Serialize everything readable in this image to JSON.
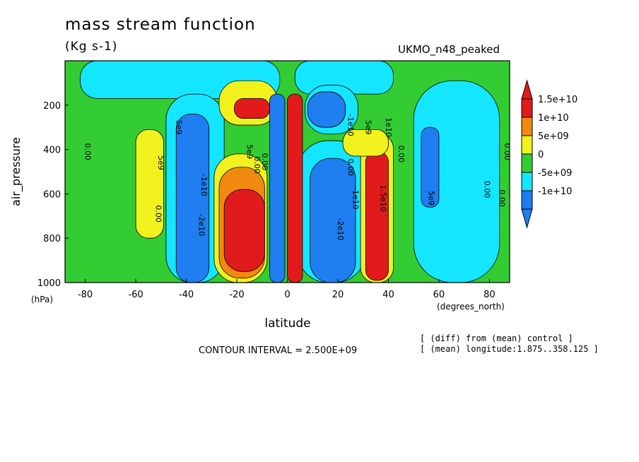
{
  "header": {
    "title": "mass stream function",
    "units": "(Kg s-1)",
    "dataset": "UKMO_n48_peaked"
  },
  "footer": {
    "contour_interval": "CONTOUR INTERVAL = 2.500E+09",
    "note_1": "[ (diff) from (mean) control ]",
    "note_2": "[ (mean) longitude:1.875..358.125 ]"
  },
  "chart_data": {
    "type": "heatmap",
    "title": "mass stream function",
    "subtitle": "(Kg s-1)",
    "xlabel": "latitude",
    "x_unit": "(degrees_north)",
    "ylabel": "air_pressure",
    "y_unit": "(hPa)",
    "xlim": [
      -88,
      88
    ],
    "ylim": [
      1000,
      0
    ],
    "x_ticks": [
      -80,
      -60,
      -40,
      -20,
      0,
      20,
      40,
      60,
      80
    ],
    "x_tick_labels": [
      "-80",
      "-60",
      "-40",
      "-20",
      "0",
      "20",
      "40",
      "60",
      "80"
    ],
    "y_ticks": [
      200,
      400,
      600,
      800,
      1000
    ],
    "y_tick_labels": [
      "200",
      "400",
      "600",
      "800",
      "1000"
    ],
    "contour_interval": 2500000000,
    "colorbar": {
      "levels": [
        {
          "label": "1.5e+10",
          "color": "#e11b1b"
        },
        {
          "label": "1e+10",
          "color": "#f08a0f"
        },
        {
          "label": "5e+09",
          "color": "#f1f11e"
        },
        {
          "label": "0",
          "color": "#33cc33"
        },
        {
          "label": "-5e+09",
          "color": "#14e6ff"
        },
        {
          "label": "-1e+10",
          "color": "#1f7ef0"
        }
      ]
    },
    "background_color": "#33cc33",
    "cells": [
      {
        "name": "north-polar-negative",
        "x": [
          50,
          84
        ],
        "y": [
          90,
          1000
        ],
        "value": -5000000000,
        "color": "#14e6ff"
      },
      {
        "name": "north-polar-core",
        "x": [
          53,
          60
        ],
        "y": [
          300,
          660
        ],
        "value": -10000000000,
        "color": "#1f7ef0"
      },
      {
        "name": "south-top-negative",
        "x": [
          -82,
          -3
        ],
        "y": [
          0,
          170
        ],
        "value": -5000000000,
        "color": "#14e6ff"
      },
      {
        "name": "north-top-negative",
        "x": [
          3,
          42
        ],
        "y": [
          0,
          150
        ],
        "value": -5000000000,
        "color": "#14e6ff"
      },
      {
        "name": "south-ferrel-cell",
        "x": [
          -48,
          -25
        ],
        "y": [
          150,
          1000
        ],
        "value": -5000000000,
        "color": "#14e6ff"
      },
      {
        "name": "south-ferrel-core",
        "x": [
          -44,
          -31
        ],
        "y": [
          240,
          1000
        ],
        "value": -10000000000,
        "color": "#1f7ef0"
      },
      {
        "name": "north-ferrel-cell",
        "x": [
          4,
          31
        ],
        "y": [
          360,
          1000
        ],
        "value": -5000000000,
        "color": "#14e6ff"
      },
      {
        "name": "north-ferrel-core",
        "x": [
          9,
          27
        ],
        "y": [
          440,
          1000
        ],
        "value": -10000000000,
        "color": "#1f7ef0"
      },
      {
        "name": "north-upper-negative",
        "x": [
          7,
          28
        ],
        "y": [
          110,
          330
        ],
        "value": -5000000000,
        "color": "#14e6ff"
      },
      {
        "name": "north-upper-core",
        "x": [
          8,
          23
        ],
        "y": [
          140,
          300
        ],
        "value": -10000000000,
        "color": "#1f7ef0"
      },
      {
        "name": "south-hadley-cell",
        "x": [
          -29,
          -8
        ],
        "y": [
          420,
          1000
        ],
        "value": 5000000000,
        "color": "#f1f11e"
      },
      {
        "name": "south-hadley-mid",
        "x": [
          -27,
          -9
        ],
        "y": [
          480,
          980
        ],
        "value": 10000000000,
        "color": "#f08a0f"
      },
      {
        "name": "south-hadley-core",
        "x": [
          -25,
          -9
        ],
        "y": [
          580,
          950
        ],
        "value": 15000000000,
        "color": "#e11b1b"
      },
      {
        "name": "south-upper-cell",
        "x": [
          -27,
          -4
        ],
        "y": [
          90,
          290
        ],
        "value": 5000000000,
        "color": "#f1f11e"
      },
      {
        "name": "south-upper-core",
        "x": [
          -21,
          -7
        ],
        "y": [
          170,
          260
        ],
        "value": 15000000000,
        "color": "#e11b1b"
      },
      {
        "name": "south-polar-positive",
        "x": [
          -60,
          -49
        ],
        "y": [
          310,
          800
        ],
        "value": 5000000000,
        "color": "#f1f11e"
      },
      {
        "name": "north-hadley-cell",
        "x": [
          29,
          42
        ],
        "y": [
          330,
          1000
        ],
        "value": 5000000000,
        "color": "#f1f11e"
      },
      {
        "name": "north-hadley-core",
        "x": [
          31,
          40
        ],
        "y": [
          410,
          990
        ],
        "value": 15000000000,
        "color": "#e11b1b"
      },
      {
        "name": "north-upper-positive",
        "x": [
          22,
          40
        ],
        "y": [
          310,
          430
        ],
        "value": 5000000000,
        "color": "#f1f11e"
      },
      {
        "name": "equatorial-negative",
        "x": [
          -7,
          -1
        ],
        "y": [
          150,
          1000
        ],
        "value": -10000000000,
        "color": "#1f7ef0"
      },
      {
        "name": "equatorial-positive",
        "x": [
          0,
          6
        ],
        "y": [
          150,
          1000
        ],
        "value": 15000000000,
        "color": "#e11b1b"
      }
    ],
    "contour_labels": [
      {
        "text": "0.00",
        "x": -80,
        "y": 410
      },
      {
        "text": "0.00",
        "x": -52,
        "y": 690
      },
      {
        "text": "5e9",
        "x": -51,
        "y": 460
      },
      {
        "text": "5e9",
        "x": -44,
        "y": 300
      },
      {
        "text": "-2e10",
        "x": -35,
        "y": 740
      },
      {
        "text": "-1e10",
        "x": -34,
        "y": 560
      },
      {
        "text": "5e9",
        "x": -16,
        "y": 410
      },
      {
        "text": "0.00",
        "x": -13,
        "y": 470
      },
      {
        "text": "0.00",
        "x": -10,
        "y": 455
      },
      {
        "text": "0.00",
        "x": 24,
        "y": 480
      },
      {
        "text": "-2e10",
        "x": 20,
        "y": 760
      },
      {
        "text": "-1e10",
        "x": 26,
        "y": 620
      },
      {
        "text": "5e9",
        "x": 31,
        "y": 300
      },
      {
        "text": "-1e10",
        "x": 24,
        "y": 290
      },
      {
        "text": "1.5e10",
        "x": 37,
        "y": 620
      },
      {
        "text": "1e10",
        "x": 39,
        "y": 300
      },
      {
        "text": "0.00",
        "x": 44,
        "y": 420
      },
      {
        "text": "5e9",
        "x": 56,
        "y": 620
      },
      {
        "text": "0.00",
        "x": 78,
        "y": 580
      },
      {
        "text": "0.00",
        "x": 86,
        "y": 410
      },
      {
        "text": "0.00",
        "x": 84,
        "y": 620
      }
    ]
  }
}
